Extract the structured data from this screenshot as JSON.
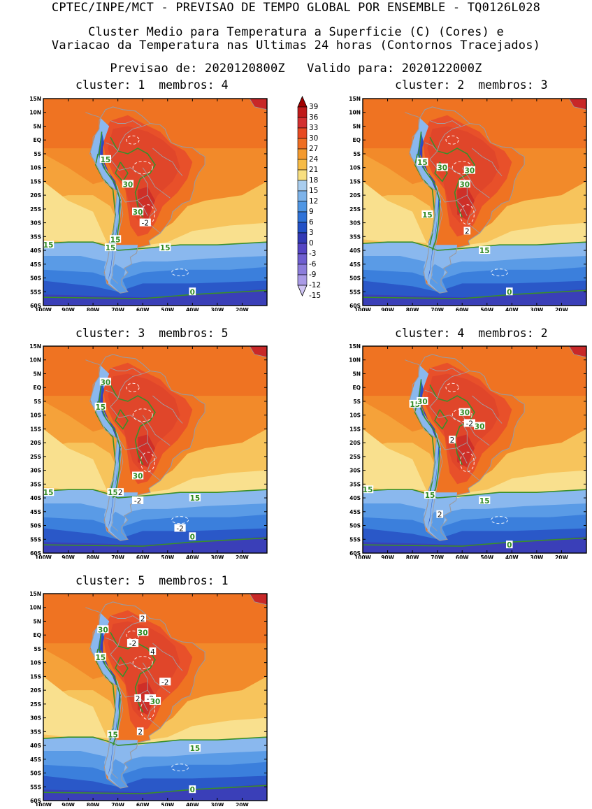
{
  "header": {
    "line1": "CPTEC/INPE/MCT - PREVISAO DE TEMPO GLOBAL POR ENSEMBLE - TQ0126L028",
    "line2": "Cluster Medio para Temperatura a Superficie (C) (Cores) e",
    "line3": "Variacao da Temperatura nas Ultimas 24 horas (Contornos Tracejados)",
    "line4": "Previsao de: 2020120800Z   Valido para: 2020122000Z"
  },
  "axes": {
    "lat_labels": [
      "15N",
      "10N",
      "5N",
      "EQ",
      "5S",
      "10S",
      "15S",
      "20S",
      "25S",
      "30S",
      "35S",
      "40S",
      "45S",
      "50S",
      "55S",
      "60S"
    ],
    "lon_labels": [
      "100W",
      "90W",
      "80W",
      "70W",
      "60W",
      "50W",
      "40W",
      "30W",
      "20W"
    ],
    "lat_range": [
      15,
      -60
    ],
    "lon_range": [
      -100,
      -10
    ]
  },
  "colorbar": {
    "labels": [
      "39",
      "36",
      "33",
      "30",
      "27",
      "24",
      "21",
      "18",
      "15",
      "12",
      "9",
      "6",
      "3",
      "0",
      "-3",
      "-6",
      "-9",
      "-12",
      "-15"
    ],
    "colors": [
      "#a00000",
      "#c01a1a",
      "#d33030",
      "#e84a22",
      "#ef6e22",
      "#f49a2e",
      "#f7bb45",
      "#f8df80",
      "#a9cdee",
      "#7db3ea",
      "#4f96e4",
      "#2f72d8",
      "#2250c6",
      "#3239b5",
      "#5545c4",
      "#6f5fd0",
      "#8c7ddb",
      "#a99ae6",
      "#cfc4f3"
    ]
  },
  "panels": [
    {
      "title": "cluster: 1  membros: 4",
      "labels": [
        {
          "text": "15",
          "lon": -75,
          "lat": -7,
          "kind": "g"
        },
        {
          "text": "30",
          "lon": -66,
          "lat": -16,
          "kind": "g"
        },
        {
          "text": "30",
          "lon": -62,
          "lat": -26,
          "kind": "g"
        },
        {
          "text": "-2",
          "lon": -59,
          "lat": -30,
          "kind": "w"
        },
        {
          "text": "15",
          "lon": -71,
          "lat": -36,
          "kind": "g"
        },
        {
          "text": "15",
          "lon": -73,
          "lat": -39,
          "kind": "g"
        },
        {
          "text": "15",
          "lon": -98,
          "lat": -38,
          "kind": "g"
        },
        {
          "text": "15",
          "lon": -51,
          "lat": -39,
          "kind": "g"
        },
        {
          "text": "0",
          "lon": -40,
          "lat": -55,
          "kind": "g"
        }
      ]
    },
    {
      "title": "cluster: 2  membros: 3",
      "labels": [
        {
          "text": "15",
          "lon": -76,
          "lat": -8,
          "kind": "g"
        },
        {
          "text": "30",
          "lon": -68,
          "lat": -10,
          "kind": "g"
        },
        {
          "text": "30",
          "lon": -57,
          "lat": -11,
          "kind": "g"
        },
        {
          "text": "30",
          "lon": -59,
          "lat": -16,
          "kind": "g"
        },
        {
          "text": "15",
          "lon": -74,
          "lat": -27,
          "kind": "g"
        },
        {
          "text": "2",
          "lon": -58,
          "lat": -33,
          "kind": "w"
        },
        {
          "text": "15",
          "lon": -51,
          "lat": -40,
          "kind": "g"
        },
        {
          "text": "0",
          "lon": -41,
          "lat": -55,
          "kind": "g"
        }
      ]
    },
    {
      "title": "cluster: 3  membros: 5",
      "labels": [
        {
          "text": "30",
          "lon": -75,
          "lat": 2,
          "kind": "g"
        },
        {
          "text": "15",
          "lon": -77,
          "lat": -7,
          "kind": "g"
        },
        {
          "text": "30",
          "lon": -62,
          "lat": -32,
          "kind": "g"
        },
        {
          "text": "15",
          "lon": -98,
          "lat": -38,
          "kind": "g"
        },
        {
          "text": "15",
          "lon": -72,
          "lat": -38,
          "kind": "g"
        },
        {
          "text": "2",
          "lon": -69,
          "lat": -38,
          "kind": "w"
        },
        {
          "text": "-2",
          "lon": -62,
          "lat": -41,
          "kind": "w"
        },
        {
          "text": "15",
          "lon": -39,
          "lat": -40,
          "kind": "g"
        },
        {
          "text": "-2",
          "lon": -45,
          "lat": -51,
          "kind": "w"
        },
        {
          "text": "0",
          "lon": -40,
          "lat": -54,
          "kind": "g"
        }
      ]
    },
    {
      "title": "cluster: 4  membros: 2",
      "labels": [
        {
          "text": "15",
          "lon": -79,
          "lat": -6,
          "kind": "g"
        },
        {
          "text": "30",
          "lon": -76,
          "lat": -5,
          "kind": "g"
        },
        {
          "text": "30",
          "lon": -59,
          "lat": -9,
          "kind": "g"
        },
        {
          "text": "-2",
          "lon": -57,
          "lat": -13,
          "kind": "w"
        },
        {
          "text": "30",
          "lon": -53,
          "lat": -14,
          "kind": "g"
        },
        {
          "text": "2",
          "lon": -64,
          "lat": -19,
          "kind": "w"
        },
        {
          "text": "15",
          "lon": -98,
          "lat": -37,
          "kind": "g"
        },
        {
          "text": "15",
          "lon": -73,
          "lat": -39,
          "kind": "g"
        },
        {
          "text": "2",
          "lon": -69,
          "lat": -46,
          "kind": "w"
        },
        {
          "text": "15",
          "lon": -51,
          "lat": -41,
          "kind": "g"
        },
        {
          "text": "0",
          "lon": -41,
          "lat": -57,
          "kind": "g"
        }
      ]
    },
    {
      "title": "cluster: 5  membros: 1",
      "labels": [
        {
          "text": "2",
          "lon": -60,
          "lat": 6,
          "kind": "w"
        },
        {
          "text": "30",
          "lon": -76,
          "lat": 2,
          "kind": "g"
        },
        {
          "text": "30",
          "lon": -60,
          "lat": 1,
          "kind": "g"
        },
        {
          "text": "-2",
          "lon": -64,
          "lat": -3,
          "kind": "w"
        },
        {
          "text": "4",
          "lon": -56,
          "lat": -6,
          "kind": "w"
        },
        {
          "text": "15",
          "lon": -77,
          "lat": -8,
          "kind": "g"
        },
        {
          "text": "-2",
          "lon": -51,
          "lat": -17,
          "kind": "w"
        },
        {
          "text": "2",
          "lon": -62,
          "lat": -23,
          "kind": "w"
        },
        {
          "text": "-2",
          "lon": -57,
          "lat": -23,
          "kind": "w"
        },
        {
          "text": "30",
          "lon": -55,
          "lat": -24,
          "kind": "g"
        },
        {
          "text": "2",
          "lon": -61,
          "lat": -35,
          "kind": "w"
        },
        {
          "text": "15",
          "lon": -72,
          "lat": -36,
          "kind": "g"
        },
        {
          "text": "15",
          "lon": -39,
          "lat": -41,
          "kind": "g"
        },
        {
          "text": "0",
          "lon": -40,
          "lat": -56,
          "kind": "g"
        }
      ]
    }
  ]
}
